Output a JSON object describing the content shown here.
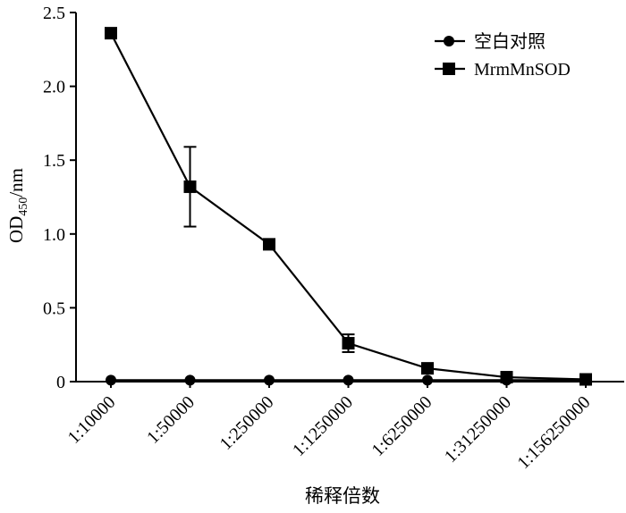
{
  "chart_data": {
    "type": "line",
    "categories": [
      "1:10000",
      "1:50000",
      "1:250000",
      "1:1250000",
      "1:6250000",
      "1:31250000",
      "1:156250000"
    ],
    "series": [
      {
        "name": "空白对照",
        "marker": "circle",
        "values": [
          0.01,
          0.01,
          0.01,
          0.01,
          0.01,
          0.01,
          0.01
        ]
      },
      {
        "name": "MrmMnSOD",
        "marker": "square",
        "values": [
          2.36,
          1.32,
          0.93,
          0.26,
          0.09,
          0.03,
          0.015
        ],
        "error": [
          0.03,
          0.27,
          0.02,
          0.06,
          0.01,
          0.005,
          0.005
        ]
      }
    ],
    "ylim": [
      0,
      2.5
    ],
    "yticks": [
      0,
      0.5,
      1.0,
      1.5,
      2.0,
      2.5
    ],
    "ytick_labels": [
      "0",
      "0.5",
      "1.0",
      "1.5",
      "2.0",
      "2.5"
    ],
    "ylabel": {
      "base": "OD",
      "sub": "450",
      "suffix": "/nm"
    },
    "xlabel": "稀释倍数",
    "legend_position": "top-right",
    "grid": false
  }
}
